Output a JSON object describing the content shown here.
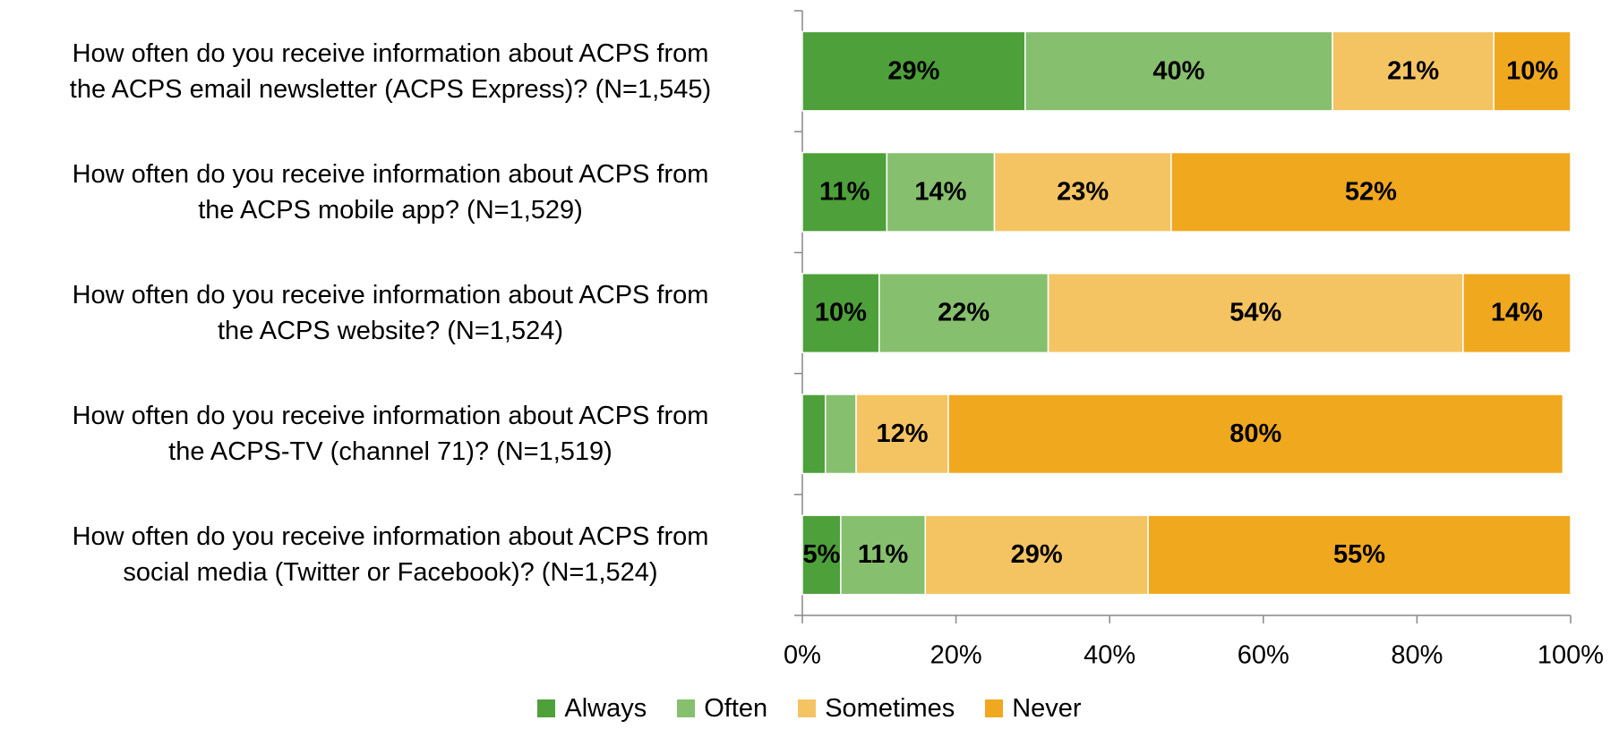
{
  "chart_data": {
    "type": "stacked_bar_horizontal",
    "categories": [
      "How often do you receive information about ACPS from\nthe ACPS email newsletter (ACPS Express)? (N=1,545)",
      "How often do you receive information about ACPS from\nthe ACPS mobile app? (N=1,529)",
      "How often do you receive information about ACPS from\nthe ACPS website? (N=1,524)",
      "How often do you receive information about ACPS from\nthe ACPS-TV (channel 71)? (N=1,519)",
      "How often do you receive information about ACPS from\nsocial media (Twitter or Facebook)? (N=1,524)"
    ],
    "series": [
      {
        "name": "Always",
        "color": "#4ea03a",
        "values": [
          29,
          11,
          10,
          3,
          5
        ],
        "value_labels": [
          "29%",
          "11%",
          "10%",
          null,
          "5%"
        ]
      },
      {
        "name": "Often",
        "color": "#86bf6e",
        "values": [
          40,
          14,
          22,
          4,
          11
        ],
        "value_labels": [
          "40%",
          "14%",
          "22%",
          null,
          "11%"
        ]
      },
      {
        "name": "Sometimes",
        "color": "#f4c462",
        "values": [
          21,
          23,
          54,
          12,
          29
        ],
        "value_labels": [
          "21%",
          "23%",
          "54%",
          "12%",
          "29%"
        ]
      },
      {
        "name": "Never",
        "color": "#f0a81f",
        "values": [
          10,
          52,
          14,
          80,
          55
        ],
        "value_labels": [
          "10%",
          "52%",
          "14%",
          "80%",
          "55%"
        ]
      }
    ],
    "xlim": [
      0,
      100
    ],
    "xticks": [
      {
        "value": 0,
        "label": "0%"
      },
      {
        "value": 20,
        "label": "20%"
      },
      {
        "value": 40,
        "label": "40%"
      },
      {
        "value": 60,
        "label": "60%"
      },
      {
        "value": 80,
        "label": "80%"
      },
      {
        "value": 100,
        "label": "100%"
      }
    ],
    "legend": "bottom"
  }
}
